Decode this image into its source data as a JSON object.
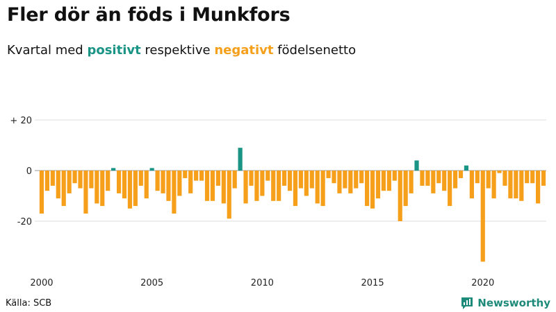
{
  "title": "Fler dör än föds i Munkfors",
  "subtitle": {
    "prefix": "Kvartal med ",
    "positive": "positivt",
    "middle": " respektive ",
    "negative": "negativt",
    "suffix": " födelsenetto"
  },
  "source": "Källa: SCB",
  "brand": "Newsworthy",
  "colors": {
    "positive": "#1a9485",
    "negative": "#f59f1a",
    "grid": "#dddddd",
    "axis": "#999999"
  },
  "chart_data": {
    "type": "bar",
    "start_year": 2000,
    "ylim": [
      -38,
      20
    ],
    "yticks": [
      {
        "value": 20,
        "label": "+ 20"
      },
      {
        "value": 0,
        "label": "0"
      },
      {
        "value": -20,
        "label": "-20"
      }
    ],
    "xticks": [
      "2000",
      "2005",
      "2010",
      "2015",
      "2020"
    ],
    "values": [
      -17,
      -8,
      -6,
      -11,
      -14,
      -9,
      -5,
      -7,
      -17,
      -7,
      -13,
      -14,
      -8,
      1,
      -9,
      -11,
      -15,
      -14,
      -6,
      -11,
      1,
      -8,
      -9,
      -12,
      -17,
      -10,
      -3,
      -9,
      -4,
      -4,
      -12,
      -12,
      -6,
      -13,
      -19,
      -7,
      9,
      -13,
      -6,
      -12,
      -10,
      -4,
      -12,
      -12,
      -6,
      -8,
      -14,
      -7,
      -10,
      -7,
      -13,
      -14,
      -3,
      -5,
      -9,
      -7,
      -9,
      -7,
      -5,
      -14,
      -15,
      -11,
      -8,
      -8,
      -4,
      -20,
      -14,
      -9,
      4,
      -6,
      -6,
      -9,
      -5,
      -8,
      -14,
      -7,
      -3,
      2,
      -11,
      -5,
      -36,
      -7,
      -11,
      -1,
      -6,
      -11,
      -11,
      -12,
      -5,
      -5,
      -13,
      -6
    ]
  }
}
